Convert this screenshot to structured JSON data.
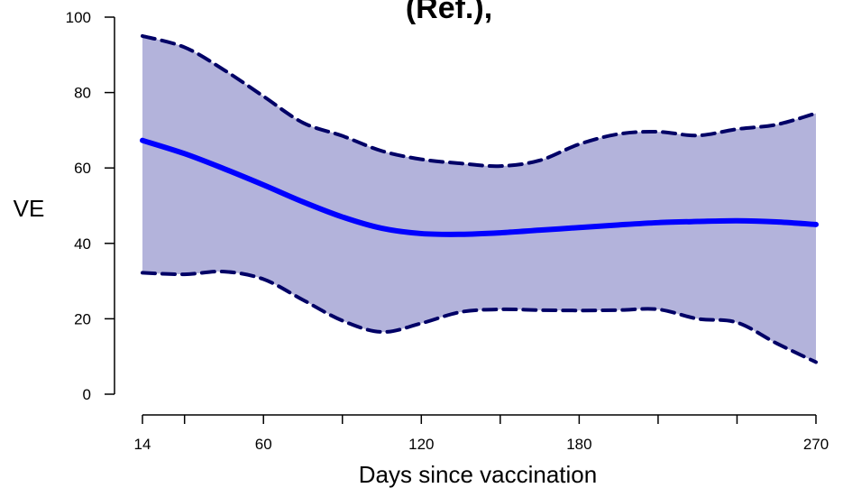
{
  "chart_data": {
    "type": "line",
    "title": "(Ref.),",
    "xlabel": "Days since vaccination",
    "ylabel": "VE",
    "xlim": [
      14,
      270
    ],
    "ylim": [
      0,
      100
    ],
    "x_ticks": [
      14,
      30,
      60,
      90,
      120,
      150,
      180,
      210,
      240,
      270
    ],
    "x_tick_labels": [
      {
        "value": 14,
        "label": "14"
      },
      {
        "value": 60,
        "label": "60"
      },
      {
        "value": 120,
        "label": "120"
      },
      {
        "value": 180,
        "label": "180"
      },
      {
        "value": 270,
        "label": "270"
      }
    ],
    "y_ticks": [
      {
        "value": 0,
        "label": "0"
      },
      {
        "value": 20,
        "label": "20"
      },
      {
        "value": 40,
        "label": "40"
      },
      {
        "value": 60,
        "label": "60"
      },
      {
        "value": 80,
        "label": "80"
      },
      {
        "value": 100,
        "label": "100"
      }
    ],
    "grid": false,
    "series": [
      {
        "role": "estimate",
        "style": "solid",
        "x": [
          14,
          30,
          45,
          60,
          75,
          90,
          105,
          120,
          135,
          150,
          165,
          180,
          195,
          210,
          225,
          240,
          255,
          270
        ],
        "values": [
          67.3,
          63.8,
          59.8,
          55.5,
          51.0,
          47.0,
          44.0,
          42.6,
          42.4,
          42.8,
          43.5,
          44.2,
          44.9,
          45.5,
          45.8,
          46.0,
          45.7,
          45.0
        ]
      },
      {
        "role": "upper",
        "style": "dashed",
        "x": [
          14,
          30,
          45,
          60,
          75,
          90,
          105,
          120,
          135,
          150,
          165,
          180,
          195,
          210,
          225,
          240,
          255,
          270
        ],
        "values": [
          95.0,
          92.0,
          86.0,
          79.0,
          72.0,
          68.5,
          64.5,
          62.3,
          61.2,
          60.5,
          62.0,
          66.3,
          69.0,
          69.6,
          68.6,
          70.3,
          71.5,
          74.5
        ]
      },
      {
        "role": "lower",
        "style": "dashed",
        "x": [
          14,
          30,
          45,
          60,
          75,
          90,
          105,
          120,
          135,
          150,
          165,
          180,
          195,
          210,
          225,
          240,
          255,
          270
        ],
        "values": [
          32.2,
          31.8,
          32.5,
          30.5,
          25.0,
          19.5,
          16.5,
          18.8,
          21.8,
          22.5,
          22.3,
          22.2,
          22.3,
          22.5,
          20.0,
          19.0,
          13.5,
          8.5
        ]
      }
    ],
    "colors": {
      "estimate": "#0000ff",
      "bounds": "#000066",
      "band": "#b3b3db"
    }
  }
}
